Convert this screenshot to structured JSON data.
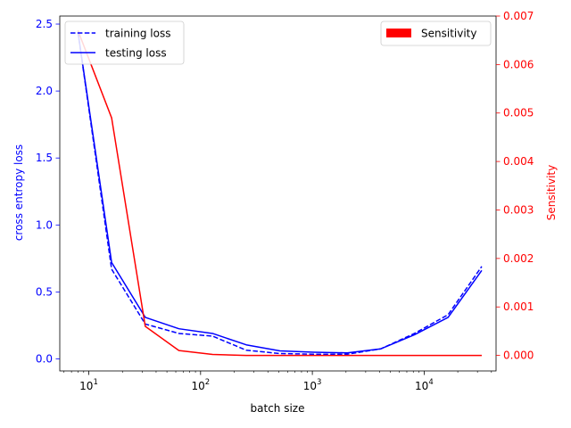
{
  "chart_data": {
    "type": "line",
    "title": "",
    "xlabel": "batch size",
    "xscale": "log",
    "xlim": [
      5.5,
      44000
    ],
    "x_ticks": [
      {
        "value": 10,
        "base": "10",
        "exp": "1"
      },
      {
        "value": 100,
        "base": "10",
        "exp": "2"
      },
      {
        "value": 1000,
        "base": "10",
        "exp": "3"
      },
      {
        "value": 10000,
        "base": "10",
        "exp": "4"
      }
    ],
    "y_left": {
      "label": "cross entropy loss",
      "color": "#0000ff",
      "lim": [
        -0.09,
        2.56
      ],
      "ticks": [
        "0.0",
        "0.5",
        "1.0",
        "1.5",
        "2.0",
        "2.5"
      ]
    },
    "y_right": {
      "label": "Sensitivity",
      "color": "#ff0000",
      "lim": [
        -0.00032,
        0.007
      ],
      "ticks": [
        "0.000",
        "0.001",
        "0.002",
        "0.003",
        "0.004",
        "0.005",
        "0.006",
        "0.007"
      ]
    },
    "x": [
      8,
      16,
      32,
      64,
      128,
      256,
      512,
      1024,
      2048,
      4096,
      8192,
      16384,
      32768
    ],
    "series": [
      {
        "name": "training loss",
        "axis": "left",
        "style": "dashed",
        "color": "#0000ff",
        "values": [
          2.44,
          0.67,
          0.26,
          0.19,
          0.17,
          0.065,
          0.04,
          0.035,
          0.035,
          0.075,
          0.19,
          0.33,
          0.69
        ]
      },
      {
        "name": "testing loss",
        "axis": "left",
        "style": "solid",
        "color": "#0000ff",
        "values": [
          2.44,
          0.72,
          0.31,
          0.225,
          0.19,
          0.105,
          0.06,
          0.05,
          0.045,
          0.075,
          0.18,
          0.31,
          0.66
        ]
      },
      {
        "name": "Sensitivity",
        "axis": "right",
        "style": "solid",
        "color": "#ff0000",
        "values": [
          0.0067,
          0.0049,
          0.0006,
          0.0001,
          2e-05,
          0.0,
          0.0,
          0.0,
          0.0,
          0.0,
          0.0,
          0.0,
          0.0
        ]
      }
    ],
    "legend_left": {
      "placement": "upper-left",
      "entries": [
        {
          "label": "training loss",
          "style": "dashed",
          "color": "#0000ff"
        },
        {
          "label": "testing loss",
          "style": "solid",
          "color": "#0000ff"
        }
      ]
    },
    "legend_right": {
      "placement": "upper-right",
      "entries": [
        {
          "label": "Sensitivity",
          "style": "patch",
          "color": "#ff0000"
        }
      ]
    },
    "grid": false
  }
}
